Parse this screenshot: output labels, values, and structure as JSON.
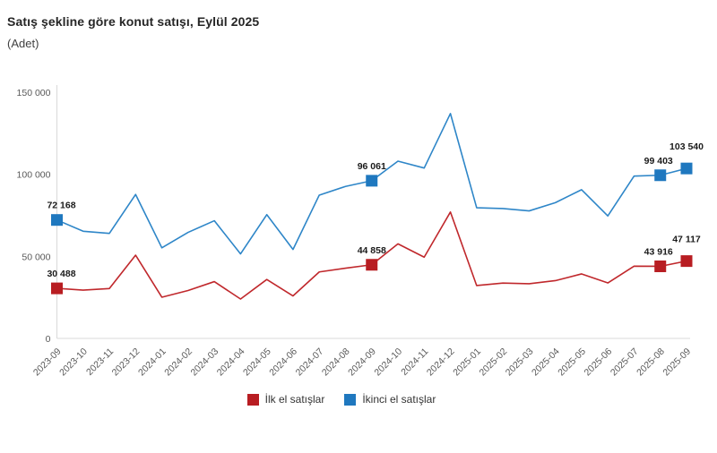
{
  "title": "Satış şekline göre konut satışı, Eylül 2025",
  "subtitle": "(Adet)",
  "colors": {
    "axis_line": "#d9d9d9",
    "tick_label": "#595959",
    "data_label": "#1a1a1a",
    "title": "#262626",
    "subtitle": "#404040",
    "first_hand_red": "#b81d22",
    "second_hand_blue": "#1f78bf"
  },
  "chart_data": {
    "type": "line",
    "title": "Satış şekline göre konut satışı, Eylül 2025",
    "ylabel": "(Adet)",
    "ylim": [
      0,
      150000
    ],
    "yticks": [
      0,
      50000,
      100000,
      150000
    ],
    "ytick_labels": [
      "0",
      "50 000",
      "100 000",
      "150 000"
    ],
    "grid": false,
    "legend_position": "bottom",
    "categories": [
      "2023-09",
      "2023-10",
      "2023-11",
      "2023-12",
      "2024-01",
      "2024-02",
      "2024-03",
      "2024-04",
      "2024-05",
      "2024-06",
      "2024-07",
      "2024-08",
      "2024-09",
      "2024-10",
      "2024-11",
      "2024-12",
      "2025-01",
      "2025-02",
      "2025-03",
      "2025-04",
      "2025-05",
      "2025-06",
      "2025-07",
      "2025-08",
      "2025-09"
    ],
    "series": [
      {
        "name": "İlk el satışlar",
        "key": "ilk-el-satislar",
        "line_color": "#c0282c",
        "marker_color": "#b81d22",
        "values": [
          30488,
          29400,
          30400,
          50700,
          25100,
          29200,
          34600,
          24000,
          35900,
          25900,
          40500,
          42800,
          44858,
          57600,
          49500,
          77000,
          32200,
          33700,
          33300,
          35200,
          39300,
          33800,
          44000,
          43916,
          47117
        ],
        "labeled_points": [
          {
            "index": 0,
            "text": "30 488",
            "dx": 5,
            "dy": -13
          },
          {
            "index": 12,
            "text": "44 858",
            "dx": 0,
            "dy": -13
          },
          {
            "index": 23,
            "text": "43 916",
            "dx": -2,
            "dy": -13
          },
          {
            "index": 24,
            "text": "47 117",
            "dx": 0,
            "dy": -21
          }
        ]
      },
      {
        "name": "İkinci el satışlar",
        "key": "ikinci-el-satislar",
        "line_color": "#2e86c8",
        "marker_color": "#1f78bf",
        "values": [
          72168,
          65300,
          64000,
          87700,
          55200,
          64600,
          71700,
          51500,
          75400,
          54200,
          87300,
          92600,
          96061,
          108000,
          103800,
          137000,
          79600,
          79100,
          77700,
          82700,
          90600,
          74600,
          98900,
          99403,
          103540
        ],
        "labeled_points": [
          {
            "index": 0,
            "text": "72 168",
            "dx": 5,
            "dy": -13
          },
          {
            "index": 12,
            "text": "96 061",
            "dx": 0,
            "dy": -13
          },
          {
            "index": 23,
            "text": "99 403",
            "dx": -2,
            "dy": -13
          },
          {
            "index": 24,
            "text": "103 540",
            "dx": 0,
            "dy": -21
          }
        ]
      }
    ]
  },
  "legend": {
    "items": [
      {
        "label": "İlk el satışlar",
        "color": "#b81d22"
      },
      {
        "label": "İkinci el satışlar",
        "color": "#1f78bf"
      }
    ]
  }
}
